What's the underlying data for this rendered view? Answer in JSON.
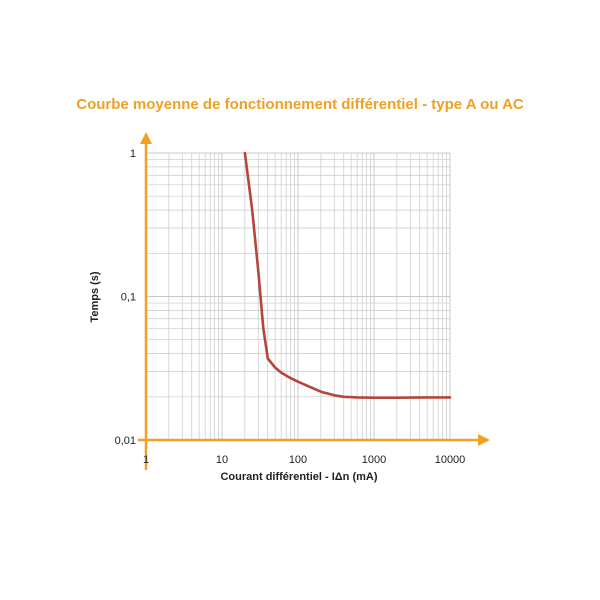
{
  "chart_data": {
    "type": "line",
    "title": "Courbe moyenne de fonctionnement différentiel - type A ou AC",
    "xlabel": "Courant différentiel - IΔn (mA)",
    "ylabel": "Temps (s)",
    "x_scale": "log",
    "y_scale": "log",
    "xlim": [
      1,
      10000
    ],
    "ylim": [
      0.01,
      1
    ],
    "x_ticks": [
      "1",
      "10",
      "100",
      "1000",
      "10000"
    ],
    "y_ticks": [
      "0,01",
      "0,1",
      "1"
    ],
    "grid": true,
    "series": [
      {
        "name": "",
        "color": "#b5453c",
        "x": [
          20,
          25,
          30,
          35,
          40,
          50,
          60,
          80,
          100,
          150,
          200,
          300,
          400,
          600,
          1000,
          2000,
          5000,
          10000
        ],
        "y": [
          1,
          0.4,
          0.15,
          0.06,
          0.037,
          0.032,
          0.0295,
          0.027,
          0.0255,
          0.0232,
          0.0217,
          0.0205,
          0.02,
          0.0198,
          0.0197,
          0.0197,
          0.0198,
          0.0198
        ]
      }
    ]
  },
  "colors": {
    "accent": "#f0a022",
    "grid": "#c8c8c8",
    "curve": "#b5453c"
  }
}
